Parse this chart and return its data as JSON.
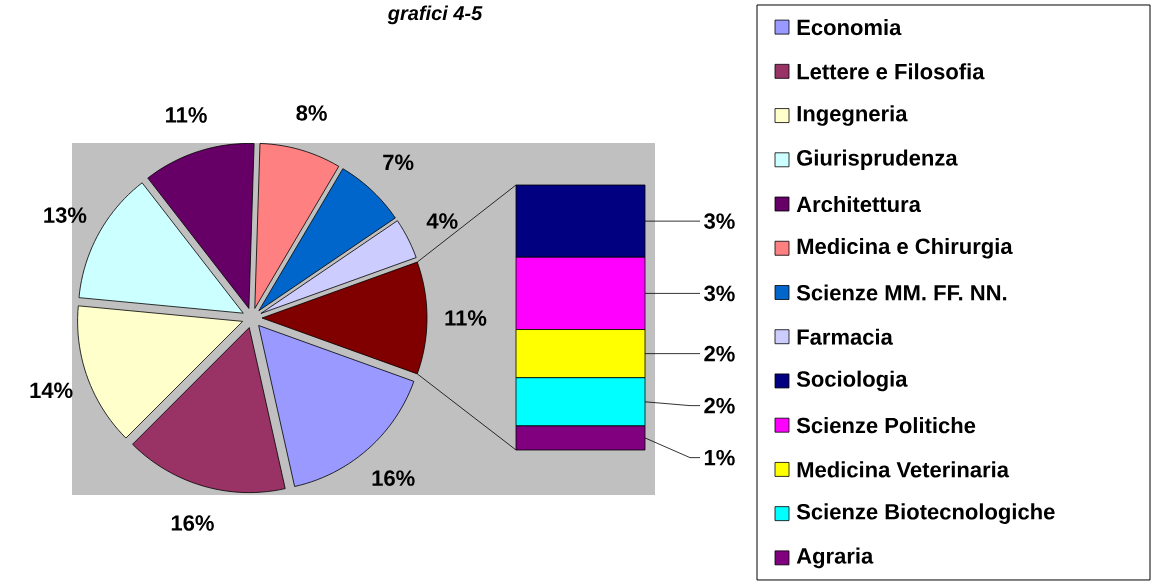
{
  "chart_data": [
    {
      "type": "pie",
      "title": "grafici 4-5",
      "legend": "right",
      "categories": [
        "Economia",
        "Lettere e Filosofia",
        "Ingegneria",
        "Giurisprudenza",
        "Architettura",
        "Medicina e Chirurgia",
        "Scienze MM. FF. NN.",
        "Farmacia",
        null
      ],
      "values": [
        16,
        16,
        14,
        13,
        11,
        8,
        7,
        4,
        11
      ],
      "value_labels": [
        "16%",
        "16%",
        "14%",
        "13%",
        "11%",
        "8%",
        "7%",
        "4%",
        "11%"
      ],
      "colors": [
        "#9999ff",
        "#993366",
        "#ffffcc",
        "#ccffff",
        "#660066",
        "#ff8080",
        "#0066cc",
        "#ccccff",
        "#800000"
      ]
    },
    {
      "type": "bar",
      "stacked": true,
      "legend": "right",
      "categories": [
        null
      ],
      "series": [
        {
          "name": "Agraria",
          "color": "#800080",
          "values": [
            1
          ],
          "value_labels": [
            "1%"
          ]
        },
        {
          "name": "Scienze Biotecnologiche",
          "color": "#00ffff",
          "values": [
            2
          ],
          "value_labels": [
            "2%"
          ]
        },
        {
          "name": "Medicina Veterinaria",
          "color": "#ffff00",
          "values": [
            2
          ],
          "value_labels": [
            "2%"
          ]
        },
        {
          "name": "Scienze Politiche",
          "color": "#ff00ff",
          "values": [
            3
          ],
          "value_labels": [
            "3%"
          ]
        },
        {
          "name": "Sociologia",
          "color": "#000080",
          "values": [
            3
          ],
          "value_labels": [
            "3%"
          ]
        }
      ]
    }
  ]
}
